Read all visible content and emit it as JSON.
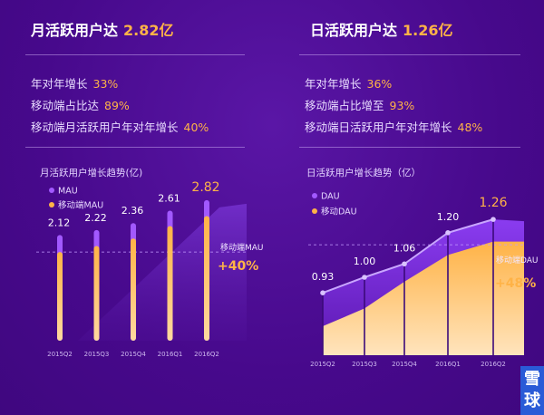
{
  "left": {
    "headline_text": "月活跃用户达",
    "headline_value": "2.82亿",
    "stats": [
      {
        "label": "年对年增长",
        "value": "33%"
      },
      {
        "label": "移动端占比达",
        "value": "89%"
      },
      {
        "label": "移动端月活跃用户年对年增长",
        "value": "40%"
      }
    ]
  },
  "right": {
    "headline_text": "日活跃用户达",
    "headline_value": "1.26亿",
    "stats": [
      {
        "label": "年对年增长",
        "value": "36%"
      },
      {
        "label": "移动端占比增至",
        "value": "93%"
      },
      {
        "label": "移动端日活跃用户年对年增长",
        "value": "48%"
      }
    ]
  },
  "chart_data": [
    {
      "type": "bar",
      "title": "月活跃用户增长趋势(亿)",
      "categories": [
        "2015Q2",
        "2015Q3",
        "2015Q4",
        "2016Q1",
        "2016Q2"
      ],
      "series": [
        {
          "name": "MAU",
          "values": [
            2.12,
            2.22,
            2.36,
            2.61,
            2.82
          ],
          "labels": [
            "2.12",
            "2.22",
            "2.36",
            "2.61",
            "2.82"
          ],
          "color": "#a259ff"
        },
        {
          "name": "移动端MAU",
          "values": [
            1.78,
            1.9,
            2.05,
            2.3,
            2.5
          ],
          "color": "#ffb347"
        }
      ],
      "legend": "top-left",
      "annotation_label": "移动端MAU",
      "annotation_value": "+40%",
      "ylim": [
        0,
        3.2
      ]
    },
    {
      "type": "area",
      "title": "日活跃用户增长趋势（亿）",
      "categories": [
        "2015Q2",
        "2015Q3",
        "2015Q4",
        "2016Q1",
        "2016Q2"
      ],
      "series": [
        {
          "name": "DAU",
          "values": [
            0.93,
            1.0,
            1.06,
            1.2,
            1.26
          ],
          "labels": [
            "0.93",
            "1.00",
            "1.06",
            "1.20",
            "1.26"
          ],
          "color": "#a259ff"
        },
        {
          "name": "移动DAU",
          "values": [
            0.78,
            0.86,
            0.98,
            1.1,
            1.16
          ],
          "color": "#ffb347"
        }
      ],
      "legend": "top-left",
      "annotation_label": "移动端DAU",
      "annotation_value": "+48%",
      "ylim": [
        0.65,
        1.35
      ]
    }
  ],
  "colors": {
    "accent": "#ffb347",
    "purple": "#a259ff"
  },
  "watermark": {
    "line1": "雪",
    "line2": "球"
  }
}
